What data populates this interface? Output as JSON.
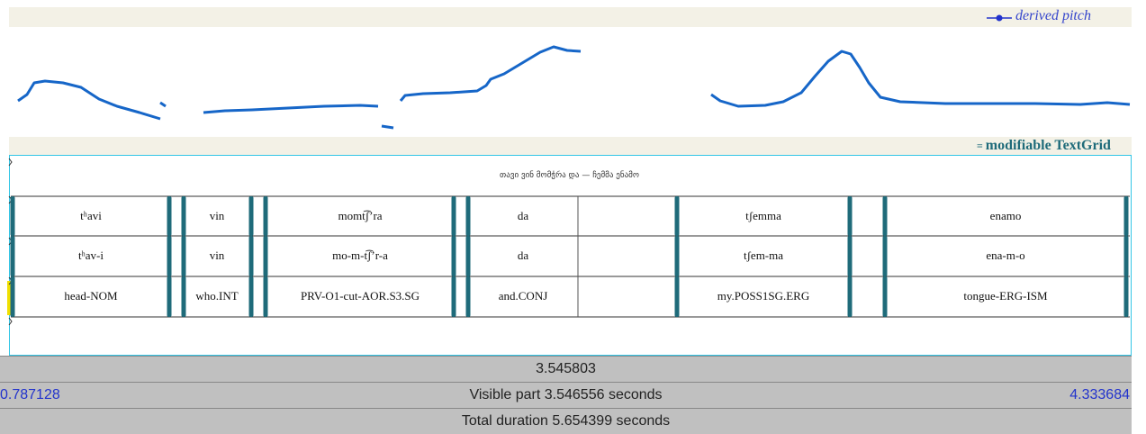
{
  "pitch_legend": "derived pitch",
  "textgrid_label": "modifiable TextGrid",
  "sentence": "თავი ვინ მომჭრა და — ჩემმა ენამო",
  "tiers": [
    [
      "tʰavi",
      "vin",
      "momt͡ʃʼra",
      "da",
      "tʃemma",
      "enamo"
    ],
    [
      "tʰav-i",
      "vin",
      "mo-m-t͡ʃʼr-a",
      "da",
      "tʃem-ma",
      "ena-m-o"
    ],
    [
      "head-NOM",
      "who.INT",
      "PRV-O1-cut-AOR.S3.SG",
      "and.CONJ",
      "my.POSS1SG.ERG",
      "tongue-ERG-ISM"
    ]
  ],
  "status": {
    "cursor": "3.545803",
    "visible_start": "0.787128",
    "visible_part": "Visible part 3.546556 seconds",
    "visible_end": "4.333684",
    "total": "Total duration 5.654399 seconds"
  }
}
